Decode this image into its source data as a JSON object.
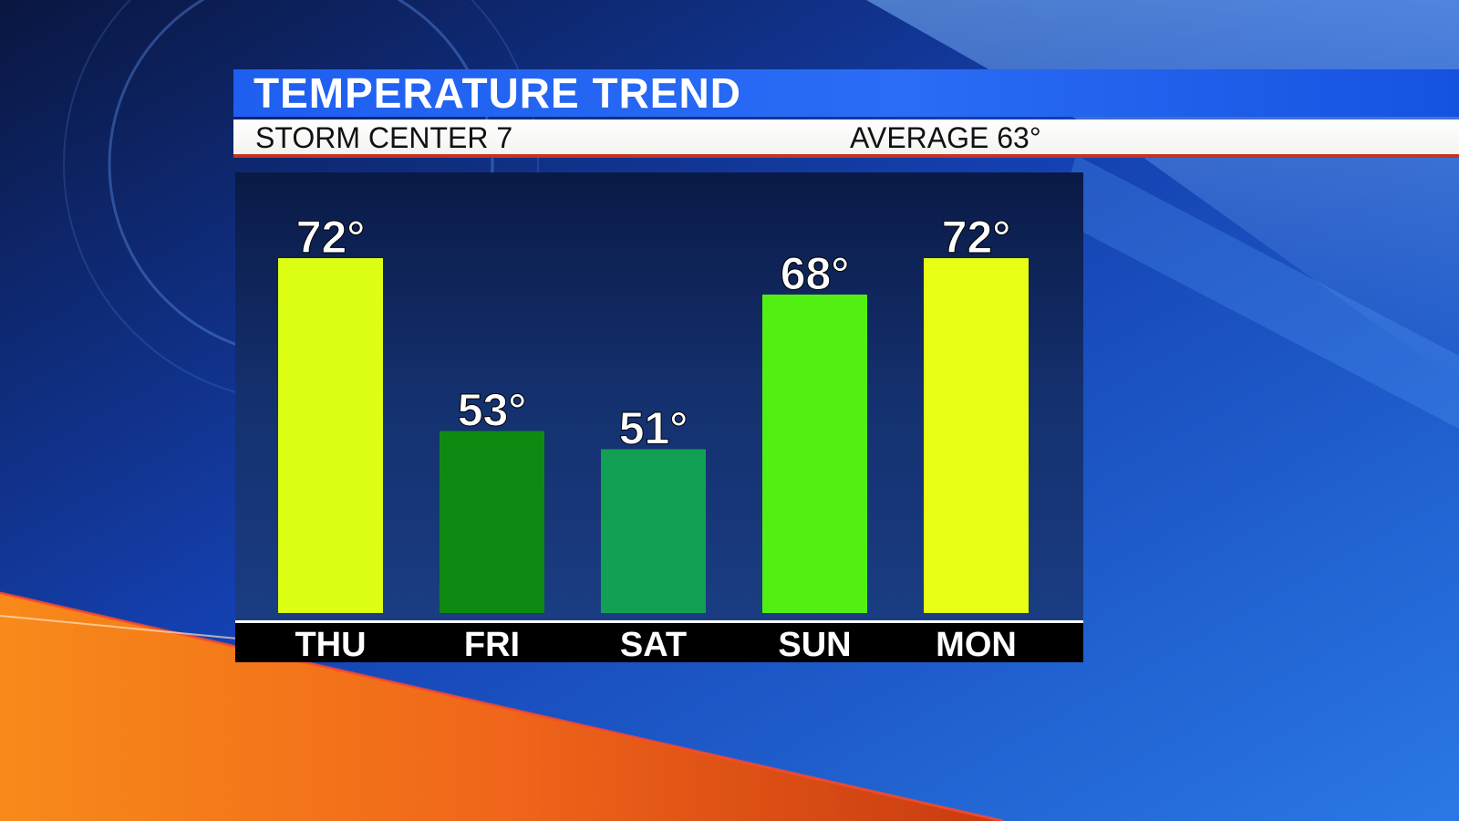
{
  "header": {
    "title": "TEMPERATURE TREND",
    "station": "STORM CENTER 7",
    "average": "AVERAGE 63°"
  },
  "colors": {
    "title_bar": "#2a6cf5",
    "panel": "#14306e",
    "day_strip": "#000000",
    "accent_red": "#c8321e",
    "orange_swoosh": "#f26b12"
  },
  "chart_data": {
    "type": "bar",
    "categories": [
      "THU",
      "FRI",
      "SAT",
      "SUN",
      "MON"
    ],
    "values": [
      72,
      53,
      51,
      68,
      72
    ],
    "value_labels": [
      "72°",
      "53°",
      "51°",
      "68°",
      "72°"
    ],
    "bar_colors": [
      "#dcff14",
      "#0e8a12",
      "#12a055",
      "#52f012",
      "#e6ff14"
    ],
    "ylim": [
      33,
      72
    ],
    "grid": false,
    "legend": "none",
    "title": "TEMPERATURE TREND"
  }
}
